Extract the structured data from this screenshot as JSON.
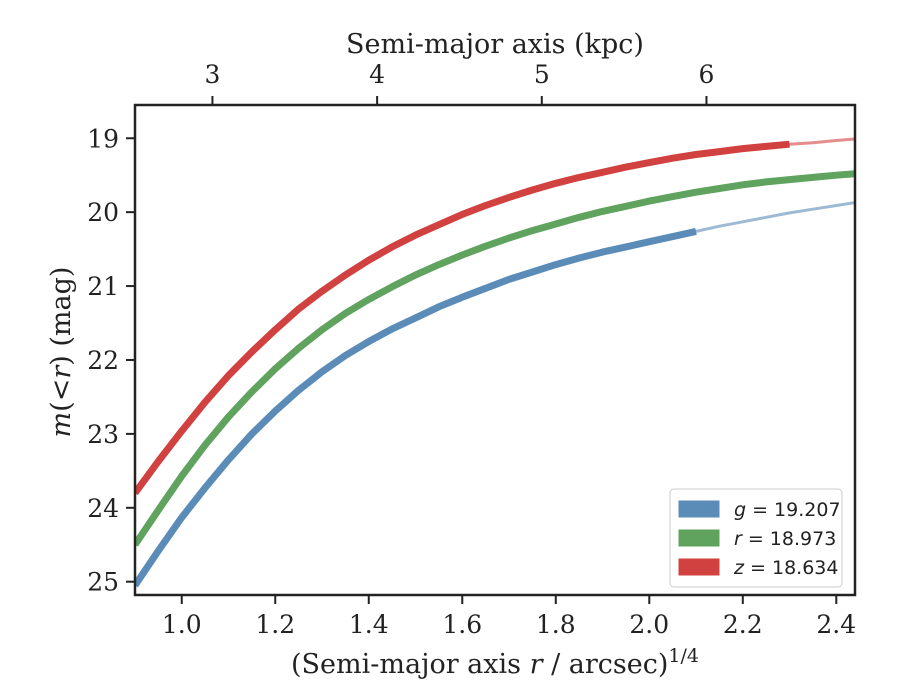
{
  "chart_data": {
    "type": "line",
    "xlabel_prefix": "(Semi-major axis ",
    "xlabel_var": "r",
    "xlabel_suffix": " / arcsec)",
    "xlabel_sup": "1/4",
    "ylabel_var": "m",
    "ylabel_mid": "(<",
    "ylabel_var2": "r",
    "ylabel_suffix": ") (mag)",
    "top_xlabel": "Semi-major axis (kpc)",
    "xlim": [
      0.9,
      2.44
    ],
    "ylim": [
      25.18,
      18.55
    ],
    "y_inverted": true,
    "x_ticks": [
      "1.0",
      "1.2",
      "1.4",
      "1.6",
      "1.8",
      "2.0",
      "2.2",
      "2.4"
    ],
    "x_tick_values": [
      1.0,
      1.2,
      1.4,
      1.6,
      1.8,
      2.0,
      2.2,
      2.4
    ],
    "y_ticks": [
      "19",
      "20",
      "21",
      "22",
      "23",
      "24",
      "25"
    ],
    "y_tick_values": [
      19,
      20,
      21,
      22,
      23,
      24,
      25
    ],
    "top_ticks": [
      "3",
      "4",
      "5",
      "6"
    ],
    "top_tick_values_kpc": [
      3,
      4,
      5,
      6
    ],
    "top_tick_positions_x": [
      1.0656,
      1.4179,
      1.7701,
      2.1223
    ],
    "legend_position": "lower-right",
    "grid": false,
    "series": [
      {
        "name": "g = 19.207",
        "var": "g",
        "value": "19.207",
        "color": "#5b8cb8",
        "x": [
          0.9,
          0.95,
          1.0,
          1.05,
          1.1,
          1.15,
          1.2,
          1.25,
          1.3,
          1.35,
          1.4,
          1.45,
          1.5,
          1.55,
          1.6,
          1.65,
          1.7,
          1.75,
          1.8,
          1.85,
          1.9,
          1.95,
          2.0,
          2.05,
          2.1
        ],
        "y": [
          25.05,
          24.58,
          24.13,
          23.73,
          23.35,
          23.0,
          22.69,
          22.41,
          22.16,
          21.94,
          21.75,
          21.58,
          21.43,
          21.28,
          21.15,
          21.03,
          20.91,
          20.81,
          20.71,
          20.62,
          20.54,
          20.47,
          20.4,
          20.33,
          20.26
        ],
        "extension_x": [
          2.1,
          2.15,
          2.2,
          2.25,
          2.3,
          2.35,
          2.4,
          2.44
        ],
        "extension_y": [
          20.26,
          20.19,
          20.13,
          20.07,
          20.01,
          19.96,
          19.91,
          19.87
        ]
      },
      {
        "name": "r = 18.973",
        "var": "r",
        "value": "18.973",
        "color": "#5fa35f",
        "x": [
          0.9,
          0.95,
          1.0,
          1.05,
          1.1,
          1.15,
          1.2,
          1.25,
          1.3,
          1.35,
          1.4,
          1.45,
          1.5,
          1.55,
          1.6,
          1.65,
          1.7,
          1.75,
          1.8,
          1.85,
          1.9,
          1.95,
          2.0,
          2.05,
          2.1,
          2.15,
          2.2,
          2.25,
          2.3,
          2.35,
          2.4,
          2.44
        ],
        "y": [
          24.5,
          24.03,
          23.57,
          23.15,
          22.77,
          22.43,
          22.12,
          21.84,
          21.59,
          21.37,
          21.18,
          21.01,
          20.85,
          20.71,
          20.58,
          20.46,
          20.35,
          20.25,
          20.16,
          20.07,
          19.99,
          19.92,
          19.85,
          19.79,
          19.73,
          19.68,
          19.63,
          19.59,
          19.56,
          19.53,
          19.5,
          19.48
        ],
        "extension_x": [],
        "extension_y": []
      },
      {
        "name": "z = 18.634",
        "var": "z",
        "value": "18.634",
        "color": "#d1413f",
        "x": [
          0.9,
          0.95,
          1.0,
          1.05,
          1.1,
          1.15,
          1.2,
          1.25,
          1.3,
          1.35,
          1.4,
          1.45,
          1.5,
          1.55,
          1.6,
          1.65,
          1.7,
          1.75,
          1.8,
          1.85,
          1.9,
          1.95,
          2.0,
          2.05,
          2.1,
          2.15,
          2.2,
          2.25,
          2.3
        ],
        "y": [
          23.8,
          23.37,
          22.96,
          22.57,
          22.21,
          21.89,
          21.59,
          21.31,
          21.07,
          20.85,
          20.65,
          20.47,
          20.31,
          20.17,
          20.03,
          19.91,
          19.8,
          19.7,
          19.61,
          19.53,
          19.46,
          19.39,
          19.33,
          19.27,
          19.22,
          19.18,
          19.14,
          19.11,
          19.08
        ],
        "extension_x": [
          2.3,
          2.35,
          2.4,
          2.44
        ],
        "extension_y": [
          19.08,
          19.06,
          19.03,
          19.01
        ]
      }
    ]
  }
}
